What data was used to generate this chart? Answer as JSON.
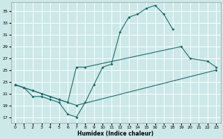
{
  "background_color": "#cce8e8",
  "grid_color": "#ffffff",
  "line_color": "#1a6b6b",
  "xlabel": "Humidex (Indice chaleur)",
  "xlim": [
    -0.5,
    23.5
  ],
  "ylim": [
    16.0,
    36.5
  ],
  "yticks": [
    17,
    19,
    21,
    23,
    25,
    27,
    29,
    31,
    33,
    35
  ],
  "xticks": [
    0,
    1,
    2,
    3,
    4,
    5,
    6,
    7,
    8,
    9,
    10,
    11,
    12,
    13,
    14,
    15,
    16,
    17,
    18,
    19,
    20,
    21,
    22,
    23
  ],
  "series": [
    {
      "x": [
        0,
        1,
        2,
        3,
        4,
        5,
        6,
        7,
        8,
        9,
        10,
        11,
        12,
        13,
        14,
        15,
        16,
        17,
        18
      ],
      "y": [
        22.5,
        22.0,
        20.5,
        20.5,
        20.0,
        19.5,
        17.5,
        17.0,
        19.5,
        22.5,
        25.5,
        26.0,
        31.5,
        34.0,
        34.5,
        35.5,
        36.0,
        34.5,
        32.0
      ]
    },
    {
      "x": [
        0,
        2,
        3,
        5,
        6,
        7,
        8,
        19,
        20,
        22,
        23
      ],
      "y": [
        22.5,
        21.5,
        21.0,
        20.0,
        19.5,
        25.5,
        25.5,
        29.0,
        27.0,
        26.5,
        25.5
      ]
    },
    {
      "x": [
        0,
        1,
        2,
        3,
        4,
        5,
        6,
        7,
        23
      ],
      "y": [
        22.5,
        22.0,
        21.5,
        21.0,
        20.5,
        20.0,
        19.5,
        19.0,
        25.0
      ]
    }
  ]
}
